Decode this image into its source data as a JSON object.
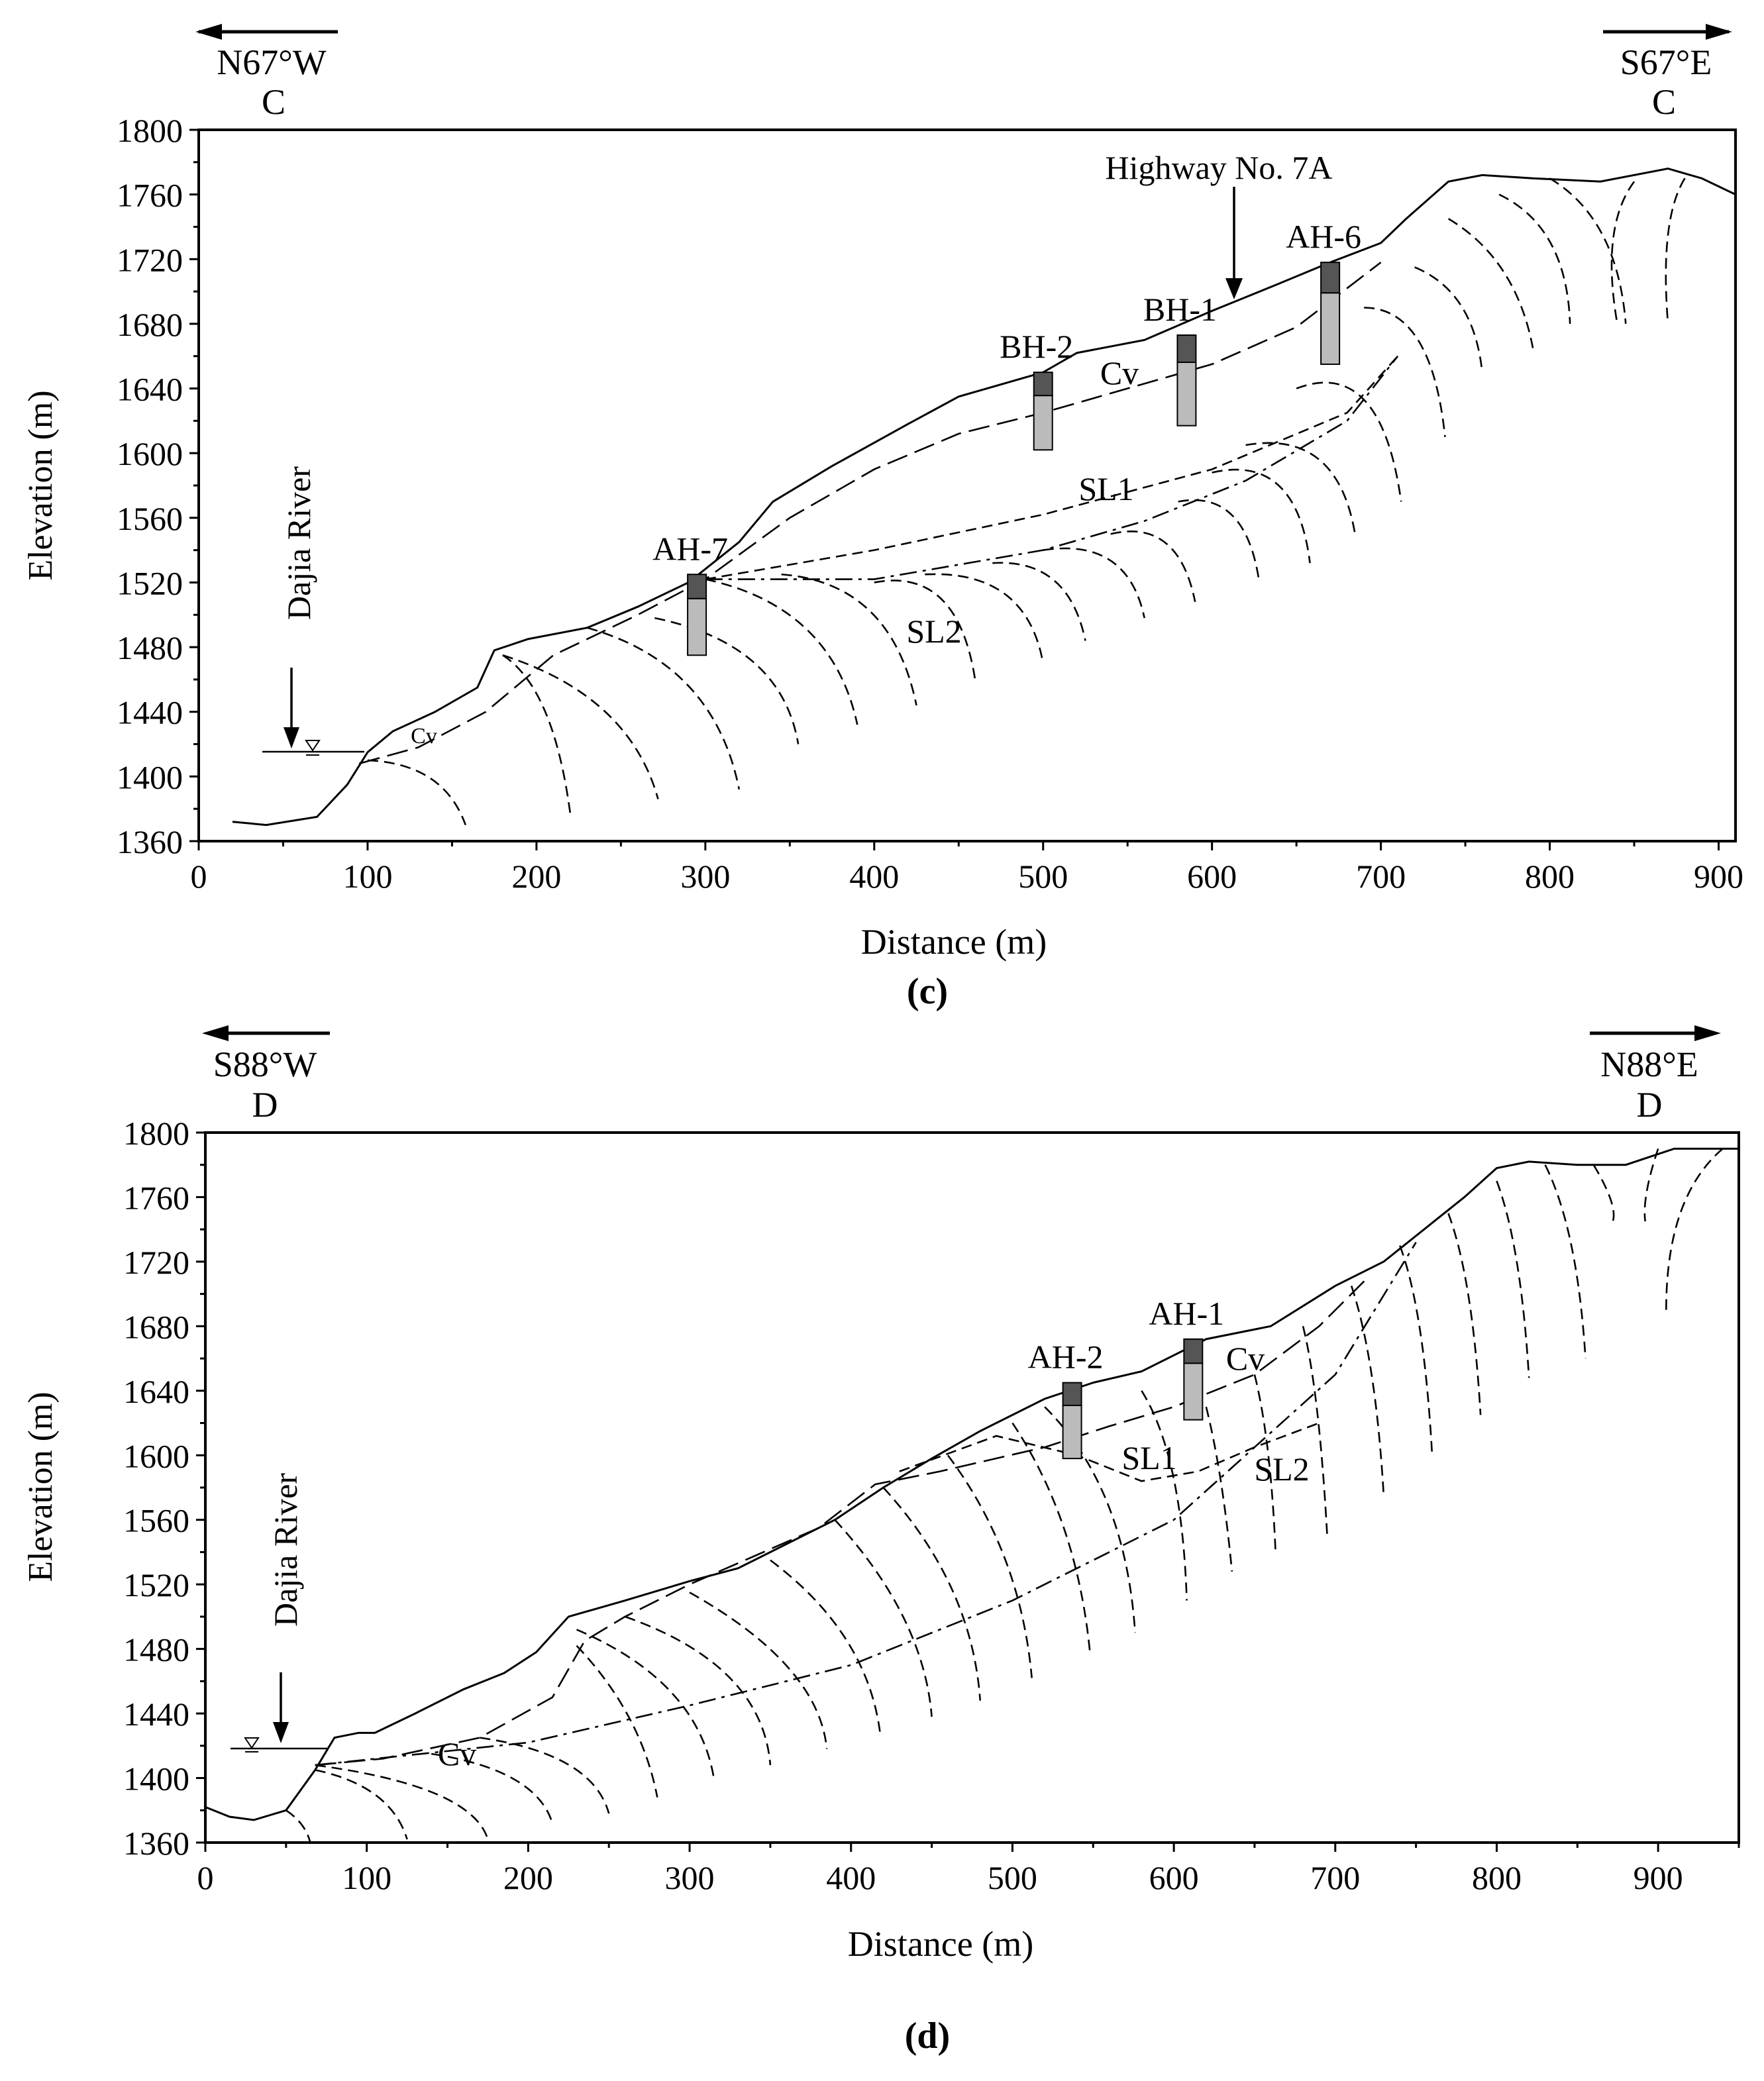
{
  "figure_c": {
    "caption": "(c)",
    "chart_data": {
      "type": "line",
      "title": "",
      "xlabel": "Distance (m)",
      "ylabel": "Elevation (m)",
      "xlim": [
        0,
        910
      ],
      "ylim": [
        1360,
        1800
      ],
      "x_ticks": [
        0,
        100,
        200,
        300,
        400,
        500,
        600,
        700,
        800,
        900
      ],
      "y_ticks": [
        1360,
        1400,
        1440,
        1480,
        1520,
        1560,
        1600,
        1640,
        1680,
        1720,
        1760,
        1800
      ],
      "direction_left": "N67°W",
      "direction_right": "S67°E",
      "section_left": "C",
      "section_right": "C",
      "series": [
        {
          "name": "Ground surface",
          "x": [
            20,
            40,
            70,
            88,
            100,
            115,
            140,
            165,
            175,
            195,
            230,
            260,
            290,
            320,
            340,
            375,
            420,
            450,
            480,
            500,
            520,
            560,
            600,
            640,
            670,
            700,
            715,
            740,
            760,
            790,
            830,
            870,
            890,
            910
          ],
          "y": [
            1372,
            1370,
            1375,
            1395,
            1415,
            1428,
            1440,
            1455,
            1478,
            1485,
            1492,
            1505,
            1520,
            1545,
            1570,
            1592,
            1618,
            1635,
            1644,
            1650,
            1662,
            1670,
            1688,
            1705,
            1718,
            1730,
            1745,
            1768,
            1772,
            1770,
            1768,
            1776,
            1770,
            1760
          ]
        },
        {
          "name": "Cv lower boundary",
          "x": [
            95,
            130,
            170,
            210,
            260,
            300,
            350,
            400,
            450,
            500,
            550,
            600,
            650,
            700
          ],
          "y": [
            1408,
            1418,
            1440,
            1475,
            1500,
            1522,
            1560,
            1590,
            1612,
            1625,
            1640,
            1655,
            1678,
            1718
          ]
        },
        {
          "name": "SL1",
          "x": [
            300,
            400,
            500,
            600,
            680,
            710
          ],
          "y": [
            1522,
            1540,
            1562,
            1590,
            1625,
            1660
          ]
        },
        {
          "name": "SL2",
          "x": [
            300,
            400,
            500,
            560,
            620,
            680,
            710
          ],
          "y": [
            1522,
            1522,
            1540,
            1558,
            1583,
            1620,
            1660
          ]
        }
      ],
      "boreholes": [
        {
          "name": "BH-2",
          "x": 500,
          "top": 1650,
          "bottom": 1602
        },
        {
          "name": "BH-1",
          "x": 585,
          "top": 1673,
          "bottom": 1617
        },
        {
          "name": "AH-6",
          "x": 670,
          "top": 1718,
          "bottom": 1655
        },
        {
          "name": "AH-7",
          "x": 295,
          "top": 1525,
          "bottom": 1475
        }
      ],
      "annotations": [
        "Highway No. 7A",
        "Cv",
        "SL1",
        "SL2",
        "Dajia River"
      ]
    }
  },
  "figure_d": {
    "caption": "(d)",
    "chart_data": {
      "type": "line",
      "title": "",
      "xlabel": "Distance (m)",
      "ylabel": "Elevation (m)",
      "xlim": [
        0,
        950
      ],
      "ylim": [
        1360,
        1800
      ],
      "x_ticks": [
        0,
        100,
        200,
        300,
        400,
        500,
        600,
        700,
        800,
        900
      ],
      "y_ticks": [
        1360,
        1400,
        1440,
        1480,
        1520,
        1560,
        1600,
        1640,
        1680,
        1720,
        1760,
        1800
      ],
      "direction_left": "S88°W",
      "direction_right": "N88°E",
      "section_left": "D",
      "section_right": "D",
      "series": [
        {
          "name": "Ground surface",
          "x": [
            0,
            15,
            30,
            50,
            68,
            80,
            95,
            105,
            130,
            160,
            185,
            205,
            225,
            260,
            300,
            330,
            360,
            390,
            420,
            450,
            480,
            520,
            550,
            580,
            620,
            660,
            700,
            730,
            780,
            800,
            820,
            850,
            880,
            910,
            950
          ],
          "y": [
            1382,
            1376,
            1374,
            1380,
            1405,
            1425,
            1428,
            1428,
            1440,
            1455,
            1465,
            1478,
            1500,
            1510,
            1522,
            1530,
            1545,
            1560,
            1580,
            1598,
            1615,
            1635,
            1645,
            1652,
            1672,
            1680,
            1705,
            1720,
            1760,
            1778,
            1782,
            1780,
            1780,
            1790,
            1790
          ]
        },
        {
          "name": "Cv lower boundary",
          "x": [
            68,
            110,
            170,
            215,
            235,
            260,
            300,
            380,
            415,
            455,
            520,
            560,
            600,
            650,
            690,
            720
          ],
          "y": [
            1408,
            1412,
            1425,
            1450,
            1485,
            1500,
            1520,
            1555,
            1582,
            1590,
            1605,
            1618,
            1630,
            1650,
            1680,
            1710
          ]
        },
        {
          "name": "SL1",
          "x": [
            430,
            490,
            540,
            580,
            615,
            650,
            690
          ],
          "y": [
            1590,
            1612,
            1600,
            1584,
            1590,
            1605,
            1620
          ]
        },
        {
          "name": "SL2",
          "x": [
            68,
            200,
            300,
            400,
            500,
            600,
            700,
            750
          ],
          "y": [
            1408,
            1422,
            1445,
            1470,
            1510,
            1560,
            1650,
            1732
          ]
        }
      ],
      "boreholes": [
        {
          "name": "AH-2",
          "x": 537,
          "top": 1645,
          "bottom": 1598
        },
        {
          "name": "AH-1",
          "x": 612,
          "top": 1672,
          "bottom": 1622
        }
      ],
      "annotations": [
        "Cv",
        "SL1",
        "SL2",
        "Dajia River"
      ]
    }
  }
}
